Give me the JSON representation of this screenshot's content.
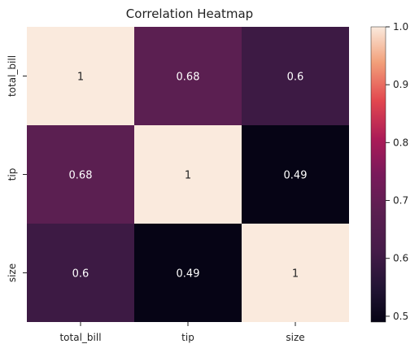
{
  "chart_data": {
    "type": "heatmap",
    "title": "Correlation Heatmap",
    "x_labels": [
      "total_bill",
      "tip",
      "size"
    ],
    "y_labels": [
      "total_bill",
      "tip",
      "size"
    ],
    "values": [
      [
        1,
        0.68,
        0.6
      ],
      [
        0.68,
        1,
        0.49
      ],
      [
        0.6,
        0.49,
        1
      ]
    ],
    "cell_labels": [
      [
        "1",
        "0.68",
        "0.6"
      ],
      [
        "0.68",
        "1",
        "0.49"
      ],
      [
        "0.6",
        "0.49",
        "1"
      ]
    ],
    "colorbar": {
      "min": 0.49,
      "max": 1.0,
      "ticks": [
        0.5,
        0.6,
        0.7,
        0.8,
        0.9,
        1.0
      ],
      "tick_labels": [
        "0.5",
        "0.6",
        "0.7",
        "0.8",
        "0.9",
        "1.0"
      ]
    },
    "colormap": "rocket",
    "grid": false,
    "legend": "colorbar-right"
  }
}
